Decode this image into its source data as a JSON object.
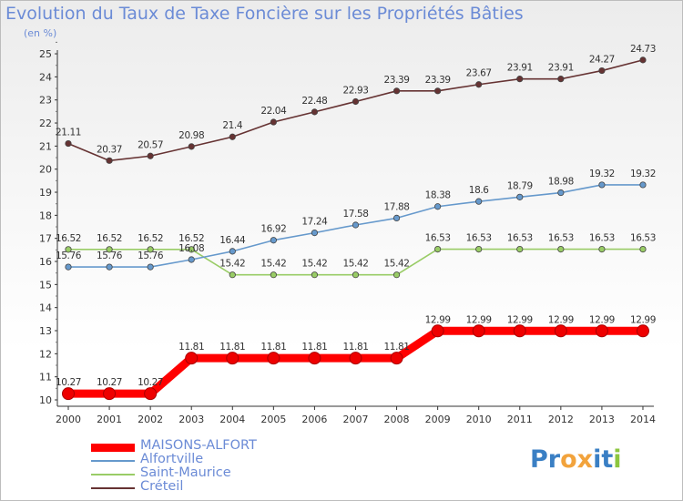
{
  "title": "Evolution du Taux de Taxe Foncière sur les Propriétés Bâties",
  "unit": "(en %)",
  "logo": {
    "p1": "Pr",
    "o": "o",
    "x": "x",
    "i": "i",
    "t": "t",
    "i2": "i"
  },
  "chart_data": {
    "type": "line",
    "title": "Evolution du Taux de Taxe Foncière sur les Propriétés Bâties",
    "ylabel": "(en %)",
    "xlabel": "",
    "ylim": [
      10,
      25
    ],
    "grid": false,
    "legend_position": "bottom-left",
    "x": [
      "2000",
      "2001",
      "2002",
      "2003",
      "2004",
      "2005",
      "2006",
      "2007",
      "2008",
      "2009",
      "2010",
      "2011",
      "2012",
      "2013",
      "2014"
    ],
    "y_ticks": [
      "10",
      "11",
      "12",
      "13",
      "14",
      "15",
      "16",
      "17",
      "18",
      "19",
      "20",
      "21",
      "22",
      "23",
      "24",
      "25"
    ],
    "series": [
      {
        "name": "MAISONS-ALFORT",
        "color": "#ff0000",
        "values": [
          10.27,
          10.27,
          10.27,
          11.81,
          11.81,
          11.81,
          11.81,
          11.81,
          11.81,
          12.99,
          12.99,
          12.99,
          12.99,
          12.99,
          12.99
        ],
        "labels": [
          "10.27",
          "10.27",
          "10.27",
          "11.81",
          "11.81",
          "11.81",
          "11.81",
          "11.81",
          "11.81",
          "12.99",
          "12.99",
          "12.99",
          "12.99",
          "12.99",
          "12.99"
        ]
      },
      {
        "name": "Alfortville",
        "color": "#6699cc",
        "values": [
          15.76,
          15.76,
          15.76,
          16.08,
          16.44,
          16.92,
          17.24,
          17.58,
          17.88,
          18.38,
          18.6,
          18.79,
          18.98,
          19.32,
          19.32
        ],
        "labels": [
          "15.76",
          "15.76",
          "15.76",
          "16.08",
          "16.44",
          "16.92",
          "17.24",
          "17.58",
          "17.88",
          "18.38",
          "18.6",
          "18.79",
          "18.98",
          "19.32",
          "19.32"
        ]
      },
      {
        "name": "Saint-Maurice",
        "color": "#99cc66",
        "values": [
          16.52,
          16.52,
          16.52,
          16.52,
          15.42,
          15.42,
          15.42,
          15.42,
          15.42,
          16.53,
          16.53,
          16.53,
          16.53,
          16.53,
          16.53
        ],
        "labels": [
          "16.52",
          "16.52",
          "16.52",
          "16.52",
          "15.42",
          "15.42",
          "15.42",
          "15.42",
          "15.42",
          "16.53",
          "16.53",
          "16.53",
          "16.53",
          "16.53",
          "16.53"
        ]
      },
      {
        "name": "Créteil",
        "color": "#663333",
        "values": [
          21.11,
          20.37,
          20.57,
          20.98,
          21.4,
          22.04,
          22.48,
          22.93,
          23.39,
          23.39,
          23.67,
          23.91,
          23.91,
          24.27,
          24.73
        ],
        "labels": [
          "21.11",
          "20.37",
          "20.57",
          "20.98",
          "21.4",
          "22.04",
          "22.48",
          "22.93",
          "23.39",
          "23.39",
          "23.67",
          "23.91",
          "23.91",
          "24.27",
          "24.73"
        ]
      }
    ]
  }
}
